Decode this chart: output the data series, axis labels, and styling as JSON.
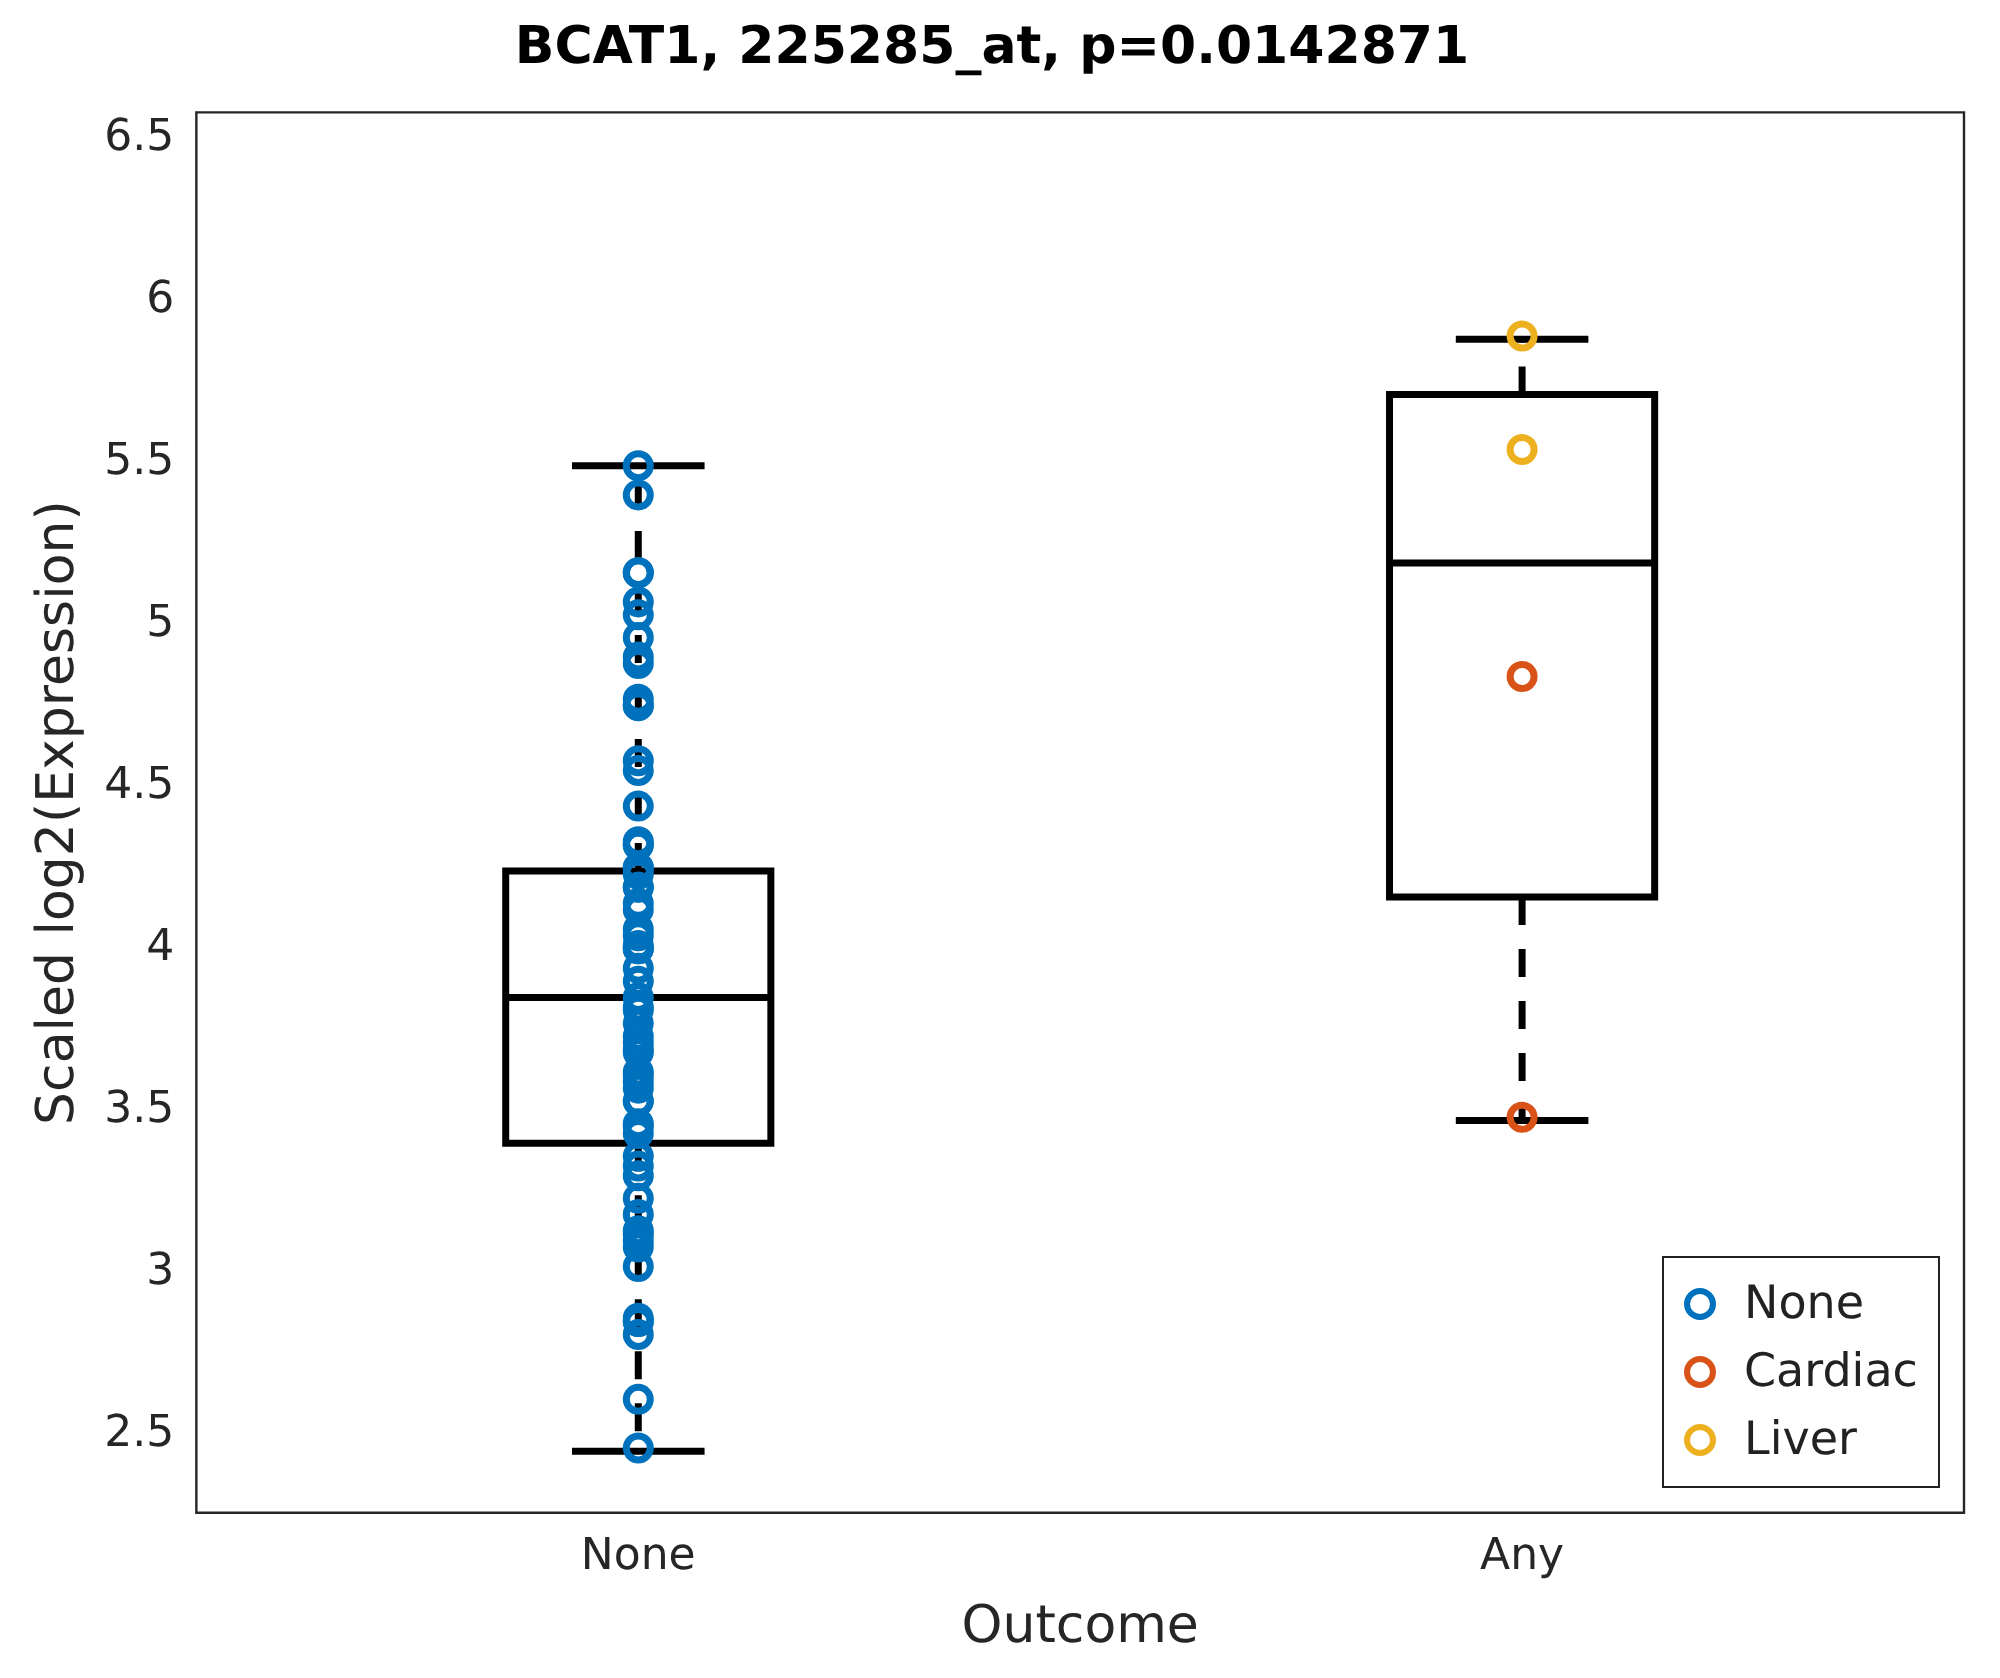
{
  "chart_data": {
    "type": "box",
    "title": "BCAT1, 225285_at, p=0.0142871",
    "xlabel": "Outcome",
    "ylabel": "Scaled log2(Expression)",
    "categories": [
      "None",
      "Any"
    ],
    "ylim": [
      2.26,
      6.58
    ],
    "yticks": [
      2.5,
      3,
      3.5,
      4,
      4.5,
      5,
      5.5,
      6,
      6.5
    ],
    "color": "#000000",
    "boxes": [
      {
        "low": 2.45,
        "q1": 3.4,
        "median": 3.85,
        "q3": 4.24,
        "high": 5.49
      },
      {
        "low": 3.47,
        "q1": 4.16,
        "median": 5.19,
        "q3": 5.71,
        "high": 5.88
      }
    ],
    "series": [
      {
        "name": "None",
        "type": "scatter",
        "color": "#0072bd",
        "x": [
          "None",
          "None",
          "None",
          "None",
          "None",
          "None",
          "None",
          "None",
          "None",
          "None",
          "None",
          "None",
          "None",
          "None",
          "None",
          "None",
          "None",
          "None",
          "None",
          "None",
          "None",
          "None",
          "None",
          "None",
          "None",
          "None",
          "None",
          "None",
          "None",
          "None",
          "None",
          "None",
          "None",
          "None",
          "None",
          "None",
          "None",
          "None",
          "None",
          "None",
          "None",
          "None",
          "None",
          "None",
          "None",
          "None",
          "None",
          "None",
          "None",
          "None",
          "None",
          "None",
          "None",
          "None",
          "None",
          "None",
          "None",
          "None",
          "None",
          "None",
          "None",
          "None",
          "None",
          "None",
          "None"
        ],
        "values": [
          5.49,
          5.4,
          5.16,
          5.16,
          5.07,
          5.03,
          4.96,
          4.88,
          4.9,
          4.77,
          4.75,
          4.75,
          4.58,
          4.55,
          4.44,
          4.33,
          4.32,
          4.32,
          4.25,
          4.25,
          4.23,
          4.19,
          4.19,
          4.12,
          4.06,
          4.14,
          4.04,
          4.0,
          4.0,
          4.01,
          3.94,
          3.9,
          3.85,
          3.82,
          3.81,
          3.77,
          3.73,
          3.69,
          3.71,
          3.68,
          3.61,
          3.62,
          3.57,
          3.59,
          3.53,
          3.53,
          3.46,
          3.45,
          3.43,
          3.36,
          3.33,
          3.3,
          3.23,
          3.18,
          3.13,
          3.12,
          3.1,
          3.08,
          3.02,
          2.85,
          2.85,
          2.81,
          2.86,
          2.61,
          2.46
        ]
      },
      {
        "name": "Cardiac",
        "type": "scatter",
        "color": "#d95319",
        "x": [
          "Any",
          "Any"
        ],
        "values": [
          4.84,
          3.48
        ]
      },
      {
        "name": "Liver",
        "type": "scatter",
        "color": "#edb120",
        "x": [
          "Any",
          "Any"
        ],
        "values": [
          5.54,
          5.89
        ]
      }
    ],
    "marker": "circle",
    "legend": "bottom right",
    "grid": false
  }
}
